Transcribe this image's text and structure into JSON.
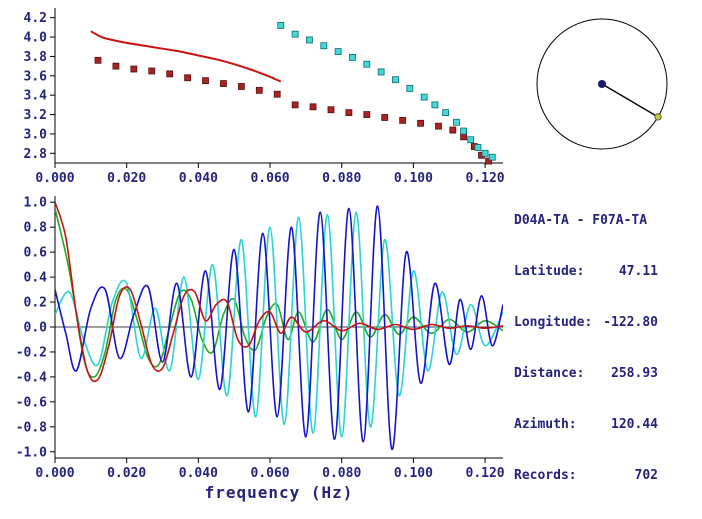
{
  "palette": {
    "background": "#ffffff",
    "axis": "#000000",
    "text": "#24247c"
  },
  "station_info": {
    "pair": "D04A-TA - F07A-TA",
    "rows": [
      {
        "label": "Latitude:",
        "value": "47.11"
      },
      {
        "label": "Longitude:",
        "value": "-122.80"
      },
      {
        "label": "Distance:",
        "value": "258.93"
      },
      {
        "label": "Azimuth:",
        "value": "120.44"
      },
      {
        "label": "Records:",
        "value": "702"
      }
    ]
  },
  "azimuth_diagram": {
    "azimuth_deg": 120.44,
    "circle_color": "#000000",
    "center_dot_color": "#1a1a6e",
    "end_dot_color": "#c8c832"
  },
  "chart_data": [
    {
      "type": "scatter",
      "title": "",
      "xlabel": "",
      "ylabel": "",
      "xlim": [
        0,
        0.125
      ],
      "ylim": [
        2.7,
        4.3
      ],
      "grid": false,
      "xticks": {
        "values": [
          0,
          0.02,
          0.04,
          0.06,
          0.08,
          0.1,
          0.12
        ],
        "labels": [
          "0.000",
          "0.020",
          "0.040",
          "0.060",
          "0.080",
          "0.100",
          "0.120"
        ]
      },
      "yticks": {
        "values": [
          2.8,
          3.0,
          3.2,
          3.4,
          3.6,
          3.8,
          4.0,
          4.2
        ],
        "labels": [
          "2.8",
          "3.0",
          "3.2",
          "3.4",
          "3.6",
          "3.8",
          "4.0",
          "4.2"
        ]
      },
      "series": [
        {
          "name": "model-dispersion-line",
          "style": "line",
          "color": "#cc1111",
          "points": [
            [
              0.01,
              4.06
            ],
            [
              0.013,
              4.0
            ],
            [
              0.016,
              3.97
            ],
            [
              0.02,
              3.94
            ],
            [
              0.025,
              3.91
            ],
            [
              0.03,
              3.88
            ],
            [
              0.035,
              3.85
            ],
            [
              0.04,
              3.81
            ],
            [
              0.045,
              3.77
            ],
            [
              0.05,
              3.72
            ],
            [
              0.055,
              3.66
            ],
            [
              0.06,
              3.59
            ],
            [
              0.063,
              3.54
            ]
          ]
        },
        {
          "name": "dispersion-picks-dark-red",
          "style": "square",
          "color": "#aa2222",
          "edge": "#551111",
          "points": [
            [
              0.012,
              3.76
            ],
            [
              0.017,
              3.7
            ],
            [
              0.022,
              3.67
            ],
            [
              0.027,
              3.65
            ],
            [
              0.032,
              3.62
            ],
            [
              0.037,
              3.58
            ],
            [
              0.042,
              3.55
            ],
            [
              0.047,
              3.52
            ],
            [
              0.052,
              3.49
            ],
            [
              0.057,
              3.45
            ],
            [
              0.062,
              3.41
            ],
            [
              0.067,
              3.3
            ],
            [
              0.072,
              3.28
            ],
            [
              0.077,
              3.25
            ],
            [
              0.082,
              3.22
            ],
            [
              0.087,
              3.2
            ],
            [
              0.092,
              3.17
            ],
            [
              0.097,
              3.14
            ],
            [
              0.102,
              3.11
            ],
            [
              0.107,
              3.08
            ],
            [
              0.111,
              3.04
            ],
            [
              0.114,
              2.97
            ],
            [
              0.117,
              2.87
            ],
            [
              0.119,
              2.78
            ],
            [
              0.121,
              2.72
            ]
          ]
        },
        {
          "name": "dispersion-picks-cyan",
          "style": "square",
          "color": "#45d8d8",
          "edge": "#0a6a6a",
          "points": [
            [
              0.063,
              4.12
            ],
            [
              0.067,
              4.03
            ],
            [
              0.071,
              3.97
            ],
            [
              0.075,
              3.91
            ],
            [
              0.079,
              3.85
            ],
            [
              0.083,
              3.79
            ],
            [
              0.087,
              3.72
            ],
            [
              0.091,
              3.64
            ],
            [
              0.095,
              3.56
            ],
            [
              0.099,
              3.47
            ],
            [
              0.103,
              3.38
            ],
            [
              0.106,
              3.3
            ],
            [
              0.109,
              3.22
            ],
            [
              0.112,
              3.12
            ],
            [
              0.114,
              3.03
            ],
            [
              0.116,
              2.94
            ],
            [
              0.118,
              2.86
            ],
            [
              0.12,
              2.8
            ],
            [
              0.122,
              2.76
            ]
          ]
        }
      ]
    },
    {
      "type": "line",
      "title": "",
      "xlabel": "frequency (Hz)",
      "ylabel": "",
      "xlim": [
        0,
        0.125
      ],
      "ylim": [
        -1.05,
        1.05
      ],
      "grid": false,
      "zero_line": true,
      "xticks": {
        "values": [
          0,
          0.02,
          0.04,
          0.06,
          0.08,
          0.1,
          0.12
        ],
        "labels": [
          "0.000",
          "0.020",
          "0.040",
          "0.060",
          "0.080",
          "0.100",
          "0.120"
        ]
      },
      "yticks": {
        "values": [
          -1.0,
          -0.8,
          -0.6,
          -0.4,
          -0.2,
          0.0,
          0.2,
          0.4,
          0.6,
          0.8,
          1.0
        ],
        "labels": [
          "-1.0",
          "-0.8",
          "-0.6",
          "-0.4",
          "-0.2",
          "0.0",
          "0.2",
          "0.4",
          "0.6",
          "0.8",
          "1.0"
        ]
      },
      "series": [
        {
          "name": "green-trace",
          "color": "#22aa22",
          "points": [
            [
              0.0,
              0.95
            ],
            [
              0.004,
              0.45
            ],
            [
              0.008,
              -0.25
            ],
            [
              0.011,
              -0.4
            ],
            [
              0.014,
              -0.2
            ],
            [
              0.017,
              0.22
            ],
            [
              0.02,
              0.3
            ],
            [
              0.023,
              0.05
            ],
            [
              0.026,
              -0.25
            ],
            [
              0.029,
              -0.3
            ],
            [
              0.032,
              0.0
            ],
            [
              0.035,
              0.28
            ],
            [
              0.038,
              0.22
            ],
            [
              0.041,
              -0.1
            ],
            [
              0.044,
              -0.2
            ],
            [
              0.047,
              0.1
            ],
            [
              0.05,
              0.22
            ],
            [
              0.053,
              -0.08
            ],
            [
              0.056,
              -0.18
            ],
            [
              0.059,
              0.08
            ],
            [
              0.062,
              0.18
            ],
            [
              0.065,
              -0.1
            ],
            [
              0.068,
              0.12
            ],
            [
              0.072,
              -0.12
            ],
            [
              0.076,
              0.14
            ],
            [
              0.08,
              -0.1
            ],
            [
              0.084,
              0.12
            ],
            [
              0.088,
              -0.08
            ],
            [
              0.092,
              0.1
            ],
            [
              0.096,
              -0.06
            ],
            [
              0.1,
              0.08
            ],
            [
              0.105,
              -0.05
            ],
            [
              0.11,
              0.06
            ],
            [
              0.115,
              -0.04
            ],
            [
              0.12,
              0.05
            ],
            [
              0.125,
              -0.03
            ]
          ]
        },
        {
          "name": "cyan-trace",
          "color": "#2ad4d4",
          "points": [
            [
              0.0,
              0.1
            ],
            [
              0.004,
              0.28
            ],
            [
              0.008,
              -0.1
            ],
            [
              0.012,
              -0.3
            ],
            [
              0.016,
              0.2
            ],
            [
              0.02,
              0.35
            ],
            [
              0.024,
              -0.25
            ],
            [
              0.028,
              0.15
            ],
            [
              0.032,
              -0.35
            ],
            [
              0.036,
              0.4
            ],
            [
              0.04,
              -0.42
            ],
            [
              0.044,
              0.5
            ],
            [
              0.048,
              -0.55
            ],
            [
              0.052,
              0.7
            ],
            [
              0.056,
              -0.72
            ],
            [
              0.06,
              0.8
            ],
            [
              0.064,
              -0.78
            ],
            [
              0.068,
              0.88
            ],
            [
              0.072,
              -0.85
            ],
            [
              0.076,
              0.9
            ],
            [
              0.08,
              -0.88
            ],
            [
              0.084,
              0.92
            ],
            [
              0.088,
              -0.8
            ],
            [
              0.092,
              0.7
            ],
            [
              0.096,
              -0.55
            ],
            [
              0.1,
              0.45
            ],
            [
              0.104,
              -0.35
            ],
            [
              0.108,
              0.28
            ],
            [
              0.112,
              -0.22
            ],
            [
              0.116,
              0.18
            ],
            [
              0.12,
              -0.15
            ],
            [
              0.125,
              0.12
            ]
          ]
        },
        {
          "name": "blue-trace",
          "color": "#1414cc",
          "points": [
            [
              0.0,
              0.3
            ],
            [
              0.003,
              -0.05
            ],
            [
              0.006,
              -0.35
            ],
            [
              0.01,
              0.15
            ],
            [
              0.014,
              0.3
            ],
            [
              0.018,
              -0.25
            ],
            [
              0.022,
              0.1
            ],
            [
              0.026,
              0.32
            ],
            [
              0.03,
              -0.28
            ],
            [
              0.034,
              0.35
            ],
            [
              0.038,
              -0.4
            ],
            [
              0.042,
              0.45
            ],
            [
              0.046,
              -0.5
            ],
            [
              0.05,
              0.62
            ],
            [
              0.054,
              -0.68
            ],
            [
              0.058,
              0.75
            ],
            [
              0.062,
              -0.72
            ],
            [
              0.066,
              0.8
            ],
            [
              0.07,
              -0.88
            ],
            [
              0.074,
              0.92
            ],
            [
              0.078,
              -0.9
            ],
            [
              0.082,
              0.95
            ],
            [
              0.086,
              -0.92
            ],
            [
              0.09,
              0.97
            ],
            [
              0.094,
              -0.98
            ],
            [
              0.098,
              0.6
            ],
            [
              0.102,
              -0.45
            ],
            [
              0.106,
              0.35
            ],
            [
              0.11,
              -0.3
            ],
            [
              0.113,
              0.22
            ],
            [
              0.116,
              -0.18
            ],
            [
              0.119,
              0.25
            ],
            [
              0.122,
              -0.15
            ],
            [
              0.125,
              0.18
            ]
          ]
        },
        {
          "name": "red-trace",
          "color": "#cc1111",
          "points": [
            [
              0.0,
              1.0
            ],
            [
              0.003,
              0.72
            ],
            [
              0.006,
              0.1
            ],
            [
              0.009,
              -0.35
            ],
            [
              0.012,
              -0.42
            ],
            [
              0.015,
              -0.15
            ],
            [
              0.018,
              0.25
            ],
            [
              0.021,
              0.3
            ],
            [
              0.024,
              0.02
            ],
            [
              0.027,
              -0.3
            ],
            [
              0.03,
              -0.33
            ],
            [
              0.033,
              -0.05
            ],
            [
              0.036,
              0.25
            ],
            [
              0.039,
              0.28
            ],
            [
              0.042,
              0.05
            ],
            [
              0.045,
              0.18
            ],
            [
              0.048,
              0.2
            ],
            [
              0.051,
              -0.1
            ],
            [
              0.054,
              -0.15
            ],
            [
              0.057,
              0.05
            ],
            [
              0.06,
              0.12
            ],
            [
              0.063,
              -0.05
            ],
            [
              0.066,
              0.08
            ],
            [
              0.07,
              -0.04
            ],
            [
              0.075,
              0.05
            ],
            [
              0.08,
              -0.03
            ],
            [
              0.085,
              0.03
            ],
            [
              0.09,
              -0.02
            ],
            [
              0.095,
              0.02
            ],
            [
              0.1,
              -0.02
            ],
            [
              0.105,
              0.02
            ],
            [
              0.11,
              -0.01
            ],
            [
              0.115,
              0.01
            ],
            [
              0.12,
              -0.01
            ],
            [
              0.125,
              0.01
            ]
          ]
        }
      ]
    }
  ]
}
